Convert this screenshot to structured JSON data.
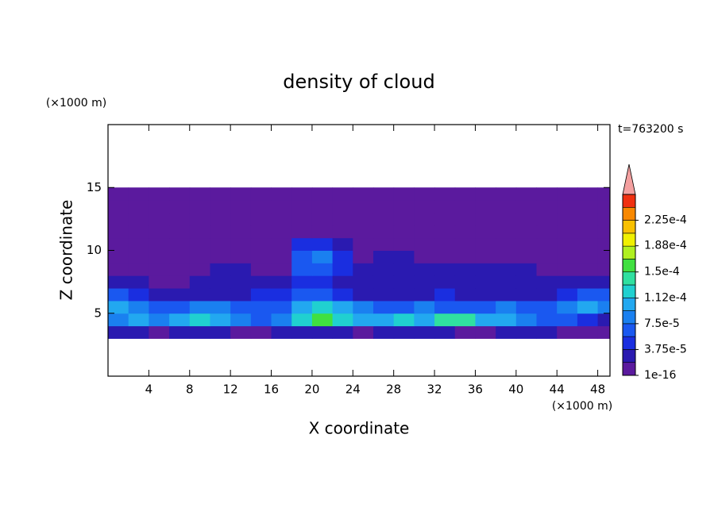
{
  "chart_data": {
    "type": "contour",
    "title": "density of cloud",
    "x_label": "X coordinate",
    "y_label": "Z coordinate",
    "x_unit": "(×1000 m)",
    "y_unit": "(×1000 m)",
    "annotation": "t=763200 s",
    "xlim": [
      0,
      49.2
    ],
    "ylim": [
      0,
      20
    ],
    "xticks": [
      4,
      8,
      12,
      16,
      20,
      24,
      28,
      32,
      36,
      40,
      44,
      48
    ],
    "yticks": [
      5,
      10,
      15
    ],
    "x": [
      1,
      3,
      5,
      7,
      9,
      11,
      13,
      15,
      17,
      19,
      21,
      23,
      25,
      27,
      29,
      31,
      33,
      35,
      37,
      39,
      41,
      43,
      45,
      47,
      49
    ],
    "y": [
      3.5,
      4.5,
      5.5,
      6.5,
      7.5,
      8.5,
      9.5,
      10.5,
      11.5,
      12.5,
      13.5,
      14.5
    ],
    "values": [
      [
        2.5e-05,
        2.5e-05,
        1e-05,
        2.5e-05,
        2.5e-05,
        2.5e-05,
        1e-05,
        1e-05,
        2.5e-05,
        2.5e-05,
        2.5e-05,
        2.5e-05,
        1e-05,
        2.5e-05,
        2.5e-05,
        2.5e-05,
        2.5e-05,
        1e-05,
        1e-05,
        2.5e-05,
        2.5e-05,
        2.5e-05,
        1e-05,
        1e-05,
        1e-05
      ],
      [
        8.5e-05,
        0.0001,
        8.5e-05,
        0.0001,
        0.00012,
        0.0001,
        8.5e-05,
        6.5e-05,
        8.5e-05,
        0.00012,
        0.00016,
        0.00012,
        0.0001,
        0.0001,
        0.00012,
        0.0001,
        0.00014,
        0.00014,
        0.0001,
        0.0001,
        8.5e-05,
        6.5e-05,
        6.5e-05,
        4.5e-05,
        2.5e-05
      ],
      [
        0.0001,
        8.5e-05,
        6.5e-05,
        6.5e-05,
        8.5e-05,
        8.5e-05,
        6.5e-05,
        6.5e-05,
        6.5e-05,
        0.0001,
        0.00012,
        0.0001,
        8.5e-05,
        6.5e-05,
        6.5e-05,
        8.5e-05,
        6.5e-05,
        6.5e-05,
        6.5e-05,
        8.5e-05,
        6.5e-05,
        6.5e-05,
        8.5e-05,
        0.0001,
        8.5e-05
      ],
      [
        6.5e-05,
        4.5e-05,
        2.5e-05,
        2.5e-05,
        2.5e-05,
        2.5e-05,
        2.5e-05,
        4.5e-05,
        4.5e-05,
        6.5e-05,
        6.5e-05,
        4.5e-05,
        2.5e-05,
        2.5e-05,
        2.5e-05,
        2.5e-05,
        4.5e-05,
        2.5e-05,
        2.5e-05,
        2.5e-05,
        2.5e-05,
        2.5e-05,
        4.5e-05,
        6.5e-05,
        6.5e-05
      ],
      [
        2.5e-05,
        2.5e-05,
        1e-05,
        1e-05,
        2.5e-05,
        2.5e-05,
        2.5e-05,
        2.5e-05,
        2.5e-05,
        4.5e-05,
        4.5e-05,
        2.5e-05,
        2.5e-05,
        2.5e-05,
        2.5e-05,
        2.5e-05,
        2.5e-05,
        2.5e-05,
        2.5e-05,
        2.5e-05,
        2.5e-05,
        2.5e-05,
        2.5e-05,
        2.5e-05,
        2.5e-05
      ],
      [
        1e-05,
        1e-05,
        1e-05,
        1e-05,
        1e-05,
        2.5e-05,
        2.5e-05,
        1e-05,
        1e-05,
        6.5e-05,
        6.5e-05,
        4.5e-05,
        2.5e-05,
        2.5e-05,
        2.5e-05,
        2.5e-05,
        2.5e-05,
        2.5e-05,
        2.5e-05,
        2.5e-05,
        2.5e-05,
        1e-05,
        1e-05,
        1e-05,
        1e-05
      ],
      [
        1e-05,
        1e-05,
        1e-05,
        1e-05,
        1e-05,
        1e-05,
        1e-05,
        1e-05,
        1e-05,
        6.5e-05,
        8.5e-05,
        4.5e-05,
        1e-05,
        2.5e-05,
        2.5e-05,
        1e-05,
        1e-05,
        1e-05,
        1e-05,
        1e-05,
        1e-05,
        1e-05,
        1e-05,
        1e-05,
        1e-05
      ],
      [
        1e-05,
        1e-05,
        1e-05,
        1e-05,
        1e-05,
        1e-05,
        1e-05,
        1e-05,
        1e-05,
        4.5e-05,
        4.5e-05,
        2.5e-05,
        1e-05,
        1e-05,
        1e-05,
        1e-05,
        1e-05,
        1e-05,
        1e-05,
        1e-05,
        1e-05,
        1e-05,
        1e-05,
        1e-05,
        1e-05
      ],
      [
        1e-05,
        1e-05,
        1e-05,
        1e-05,
        1e-05,
        1e-05,
        1e-05,
        1e-05,
        1e-05,
        1e-05,
        1e-05,
        1e-05,
        1e-05,
        1e-05,
        1e-05,
        1e-05,
        1e-05,
        1e-05,
        1e-05,
        1e-05,
        1e-05,
        1e-05,
        1e-05,
        1e-05,
        1e-05
      ],
      [
        1e-05,
        1e-05,
        1e-05,
        1e-05,
        1e-05,
        1e-05,
        1e-05,
        1e-05,
        1e-05,
        1e-05,
        1e-05,
        1e-05,
        1e-05,
        1e-05,
        1e-05,
        1e-05,
        1e-05,
        1e-05,
        1e-05,
        1e-05,
        1e-05,
        1e-05,
        1e-05,
        1e-05,
        1e-05
      ],
      [
        1e-05,
        1e-05,
        1e-05,
        1e-05,
        1e-05,
        1e-05,
        1e-05,
        1e-05,
        1e-05,
        1e-05,
        1e-05,
        1e-05,
        1e-05,
        1e-05,
        1e-05,
        1e-05,
        1e-05,
        1e-05,
        1e-05,
        1e-05,
        1e-05,
        1e-05,
        1e-05,
        1e-05,
        1e-05
      ],
      [
        1e-05,
        1e-05,
        1e-05,
        1e-05,
        1e-05,
        1e-05,
        1e-05,
        1e-05,
        1e-05,
        1e-05,
        1e-05,
        1e-05,
        1e-05,
        1e-05,
        1e-05,
        1e-05,
        1e-05,
        1e-05,
        1e-05,
        1e-05,
        1e-05,
        1e-05,
        1e-05,
        1e-05,
        1e-05
      ]
    ],
    "colorbar": {
      "lim": [
        0,
        0.0002625
      ],
      "colors": [
        "#5b1a9e",
        "#2a1ab0",
        "#1a2ee0",
        "#1a58f0",
        "#1a80f0",
        "#22a8f0",
        "#20d0d0",
        "#30e0a0",
        "#40e040",
        "#b0f020",
        "#f0f000",
        "#f8c000",
        "#f88800",
        "#f03010"
      ],
      "extend_color": "#f4a0a0",
      "ticks": [
        {
          "value": 1e-16,
          "label": "1e-16"
        },
        {
          "value": 3.75e-05,
          "label": "3.75e-5"
        },
        {
          "value": 7.5e-05,
          "label": "7.5e-5"
        },
        {
          "value": 0.000112,
          "label": "1.12e-4"
        },
        {
          "value": 0.00015,
          "label": "1.5e-4"
        },
        {
          "value": 0.000188,
          "label": "1.88e-4"
        },
        {
          "value": 0.000225,
          "label": "2.25e-4"
        }
      ]
    }
  }
}
